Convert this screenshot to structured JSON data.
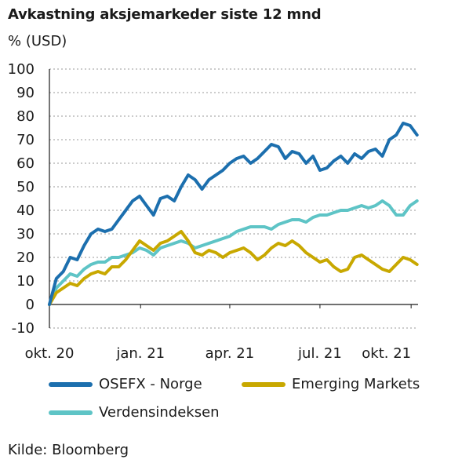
{
  "chart_data": {
    "type": "line",
    "title": "Avkastning aksjemarkeder siste 12 mnd",
    "ylabel": "% (USD)",
    "ylim": [
      -10,
      100
    ],
    "yticks": [
      100,
      90,
      80,
      70,
      60,
      50,
      40,
      30,
      20,
      10,
      0,
      -10
    ],
    "xlim": [
      "2020-10-01",
      "2021-10-08"
    ],
    "xticks": [
      {
        "date": "2020-10-01",
        "label": "okt. 20"
      },
      {
        "date": "2021-01-01",
        "label": "jan. 21"
      },
      {
        "date": "2021-04-01",
        "label": "apr. 21"
      },
      {
        "date": "2021-07-01",
        "label": "jul. 21"
      },
      {
        "date": "2021-10-01",
        "label": "okt. 21"
      }
    ],
    "grid": true,
    "legend_position": "bottom",
    "series": [
      {
        "name": "OSEFX - Norge",
        "color": "#1c6fae",
        "points": [
          [
            "2020-10-01",
            0
          ],
          [
            "2020-10-08",
            11
          ],
          [
            "2020-10-15",
            14
          ],
          [
            "2020-10-22",
            20
          ],
          [
            "2020-10-29",
            19
          ],
          [
            "2020-11-05",
            25
          ],
          [
            "2020-11-12",
            30
          ],
          [
            "2020-11-19",
            32
          ],
          [
            "2020-11-26",
            31
          ],
          [
            "2020-12-03",
            32
          ],
          [
            "2020-12-10",
            36
          ],
          [
            "2020-12-17",
            40
          ],
          [
            "2020-12-24",
            44
          ],
          [
            "2020-12-31",
            46
          ],
          [
            "2021-01-07",
            42
          ],
          [
            "2021-01-14",
            38
          ],
          [
            "2021-01-21",
            45
          ],
          [
            "2021-01-28",
            46
          ],
          [
            "2021-02-04",
            44
          ],
          [
            "2021-02-11",
            50
          ],
          [
            "2021-02-18",
            55
          ],
          [
            "2021-02-25",
            53
          ],
          [
            "2021-03-04",
            49
          ],
          [
            "2021-03-11",
            53
          ],
          [
            "2021-03-18",
            55
          ],
          [
            "2021-03-25",
            57
          ],
          [
            "2021-04-01",
            60
          ],
          [
            "2021-04-08",
            62
          ],
          [
            "2021-04-15",
            63
          ],
          [
            "2021-04-22",
            60
          ],
          [
            "2021-04-29",
            62
          ],
          [
            "2021-05-06",
            65
          ],
          [
            "2021-05-13",
            68
          ],
          [
            "2021-05-20",
            67
          ],
          [
            "2021-05-27",
            62
          ],
          [
            "2021-06-03",
            65
          ],
          [
            "2021-06-10",
            64
          ],
          [
            "2021-06-17",
            60
          ],
          [
            "2021-06-24",
            63
          ],
          [
            "2021-07-01",
            57
          ],
          [
            "2021-07-08",
            58
          ],
          [
            "2021-07-15",
            61
          ],
          [
            "2021-07-22",
            63
          ],
          [
            "2021-07-29",
            60
          ],
          [
            "2021-08-05",
            64
          ],
          [
            "2021-08-12",
            62
          ],
          [
            "2021-08-19",
            65
          ],
          [
            "2021-08-26",
            66
          ],
          [
            "2021-09-02",
            63
          ],
          [
            "2021-09-09",
            70
          ],
          [
            "2021-09-16",
            72
          ],
          [
            "2021-09-23",
            77
          ],
          [
            "2021-09-30",
            76
          ],
          [
            "2021-10-07",
            72
          ]
        ]
      },
      {
        "name": "Emerging Markets",
        "color": "#c8a800",
        "points": [
          [
            "2020-10-01",
            0
          ],
          [
            "2020-10-08",
            5
          ],
          [
            "2020-10-15",
            7
          ],
          [
            "2020-10-22",
            9
          ],
          [
            "2020-10-29",
            8
          ],
          [
            "2020-11-05",
            11
          ],
          [
            "2020-11-12",
            13
          ],
          [
            "2020-11-19",
            14
          ],
          [
            "2020-11-26",
            13
          ],
          [
            "2020-12-03",
            16
          ],
          [
            "2020-12-10",
            16
          ],
          [
            "2020-12-17",
            19
          ],
          [
            "2020-12-24",
            23
          ],
          [
            "2020-12-31",
            27
          ],
          [
            "2021-01-07",
            25
          ],
          [
            "2021-01-14",
            23
          ],
          [
            "2021-01-21",
            26
          ],
          [
            "2021-01-28",
            27
          ],
          [
            "2021-02-04",
            29
          ],
          [
            "2021-02-11",
            31
          ],
          [
            "2021-02-18",
            27
          ],
          [
            "2021-02-25",
            22
          ],
          [
            "2021-03-04",
            21
          ],
          [
            "2021-03-11",
            23
          ],
          [
            "2021-03-18",
            22
          ],
          [
            "2021-03-25",
            20
          ],
          [
            "2021-04-01",
            22
          ],
          [
            "2021-04-08",
            23
          ],
          [
            "2021-04-15",
            24
          ],
          [
            "2021-04-22",
            22
          ],
          [
            "2021-04-29",
            19
          ],
          [
            "2021-05-06",
            21
          ],
          [
            "2021-05-13",
            24
          ],
          [
            "2021-05-20",
            26
          ],
          [
            "2021-05-27",
            25
          ],
          [
            "2021-06-03",
            27
          ],
          [
            "2021-06-10",
            25
          ],
          [
            "2021-06-17",
            22
          ],
          [
            "2021-06-24",
            20
          ],
          [
            "2021-07-01",
            18
          ],
          [
            "2021-07-08",
            19
          ],
          [
            "2021-07-15",
            16
          ],
          [
            "2021-07-22",
            14
          ],
          [
            "2021-07-29",
            15
          ],
          [
            "2021-08-05",
            20
          ],
          [
            "2021-08-12",
            21
          ],
          [
            "2021-08-19",
            19
          ],
          [
            "2021-08-26",
            17
          ],
          [
            "2021-09-02",
            15
          ],
          [
            "2021-09-09",
            14
          ],
          [
            "2021-09-16",
            17
          ],
          [
            "2021-09-23",
            20
          ],
          [
            "2021-09-30",
            19
          ],
          [
            "2021-10-07",
            17
          ]
        ]
      },
      {
        "name": "Verdensindeksen",
        "color": "#5ec4c6",
        "points": [
          [
            "2020-10-01",
            0
          ],
          [
            "2020-10-08",
            7
          ],
          [
            "2020-10-15",
            10
          ],
          [
            "2020-10-22",
            13
          ],
          [
            "2020-10-29",
            12
          ],
          [
            "2020-11-05",
            15
          ],
          [
            "2020-11-12",
            17
          ],
          [
            "2020-11-19",
            18
          ],
          [
            "2020-11-26",
            18
          ],
          [
            "2020-12-03",
            20
          ],
          [
            "2020-12-10",
            20
          ],
          [
            "2020-12-17",
            21
          ],
          [
            "2020-12-24",
            22
          ],
          [
            "2020-12-31",
            24
          ],
          [
            "2021-01-07",
            23
          ],
          [
            "2021-01-14",
            21
          ],
          [
            "2021-01-21",
            24
          ],
          [
            "2021-01-28",
            25
          ],
          [
            "2021-02-04",
            26
          ],
          [
            "2021-02-11",
            27
          ],
          [
            "2021-02-18",
            26
          ],
          [
            "2021-02-25",
            24
          ],
          [
            "2021-03-04",
            25
          ],
          [
            "2021-03-11",
            26
          ],
          [
            "2021-03-18",
            27
          ],
          [
            "2021-03-25",
            28
          ],
          [
            "2021-04-01",
            29
          ],
          [
            "2021-04-08",
            31
          ],
          [
            "2021-04-15",
            32
          ],
          [
            "2021-04-22",
            33
          ],
          [
            "2021-04-29",
            33
          ],
          [
            "2021-05-06",
            33
          ],
          [
            "2021-05-13",
            32
          ],
          [
            "2021-05-20",
            34
          ],
          [
            "2021-05-27",
            35
          ],
          [
            "2021-06-03",
            36
          ],
          [
            "2021-06-10",
            36
          ],
          [
            "2021-06-17",
            35
          ],
          [
            "2021-06-24",
            37
          ],
          [
            "2021-07-01",
            38
          ],
          [
            "2021-07-08",
            38
          ],
          [
            "2021-07-15",
            39
          ],
          [
            "2021-07-22",
            40
          ],
          [
            "2021-07-29",
            40
          ],
          [
            "2021-08-05",
            41
          ],
          [
            "2021-08-12",
            42
          ],
          [
            "2021-08-19",
            41
          ],
          [
            "2021-08-26",
            42
          ],
          [
            "2021-09-02",
            44
          ],
          [
            "2021-09-09",
            42
          ],
          [
            "2021-09-16",
            38
          ],
          [
            "2021-09-23",
            38
          ],
          [
            "2021-09-30",
            42
          ],
          [
            "2021-10-07",
            44
          ]
        ]
      }
    ]
  },
  "source": "Kilde: Bloomberg"
}
